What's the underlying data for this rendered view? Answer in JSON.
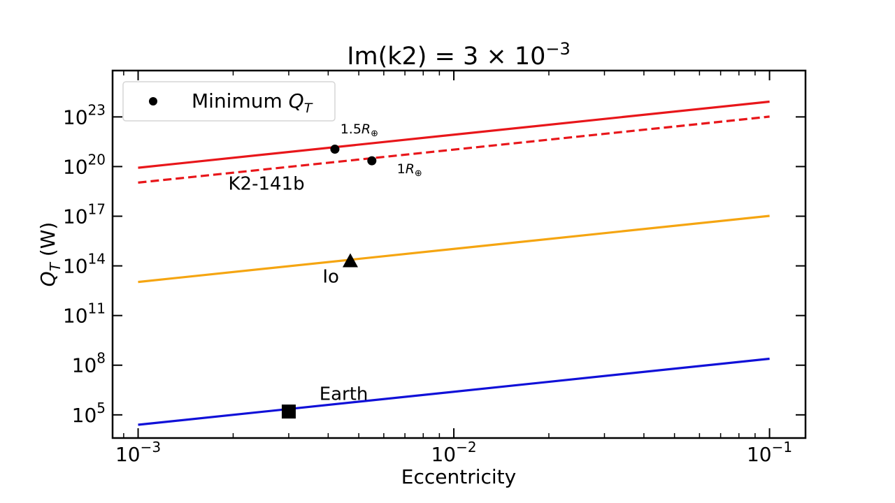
{
  "chart_data": {
    "type": "line",
    "title": "Im(k2) = 3 × 10",
    "title_exp": "−3",
    "xlabel": "Eccentricity",
    "ylabel_main": "Q",
    "ylabel_sub": "T",
    "ylabel_unit": " (W)",
    "xscale": "log",
    "yscale": "log",
    "xlim": [
      0.00083,
      0.13
    ],
    "ylim_log10": [
      3.6,
      25.8
    ],
    "x_ticks": [
      {
        "value": 0.001,
        "base": "10",
        "exp": "−3"
      },
      {
        "value": 0.01,
        "base": "10",
        "exp": "−2"
      },
      {
        "value": 0.1,
        "base": "10",
        "exp": "−1"
      }
    ],
    "y_ticks": [
      {
        "log10": 5,
        "base": "10",
        "exp": "5"
      },
      {
        "log10": 8,
        "base": "10",
        "exp": "8"
      },
      {
        "log10": 11,
        "base": "10",
        "exp": "11"
      },
      {
        "log10": 14,
        "base": "10",
        "exp": "14"
      },
      {
        "log10": 17,
        "base": "10",
        "exp": "17"
      },
      {
        "log10": 20,
        "base": "10",
        "exp": "20"
      },
      {
        "log10": 23,
        "base": "10",
        "exp": "23"
      }
    ],
    "grid": false,
    "legend_position": "upper-left",
    "legend": [
      {
        "label": "Minimum ",
        "label_math": "Q",
        "label_sub": "T",
        "marker": "circle",
        "color": "#000000"
      }
    ],
    "series": [
      {
        "id": "k2-141b-15",
        "x": [
          0.001,
          0.1
        ],
        "y_log10": [
          19.93,
          23.92
        ],
        "color": "#e8161a",
        "dash": "solid"
      },
      {
        "id": "k2-141b-1",
        "x": [
          0.001,
          0.1
        ],
        "y_log10": [
          19.03,
          23.02
        ],
        "color": "#e8161a",
        "dash": "dashed"
      },
      {
        "id": "io",
        "x": [
          0.001,
          0.1
        ],
        "y_log10": [
          13.03,
          17.02
        ],
        "color": "#f5a511",
        "dash": "solid"
      },
      {
        "id": "earth",
        "x": [
          0.001,
          0.1
        ],
        "y_log10": [
          4.4,
          8.39
        ],
        "color": "#1010d8",
        "dash": "solid"
      }
    ],
    "markers": [
      {
        "id": "k2-15-point",
        "x": 0.0042,
        "y_log10": 21.05,
        "shape": "circle",
        "color": "#000000"
      },
      {
        "id": "k2-1-point",
        "x": 0.0055,
        "y_log10": 20.35,
        "shape": "circle",
        "color": "#000000"
      },
      {
        "id": "io-point",
        "x": 0.0047,
        "y_log10": 14.3,
        "shape": "triangle",
        "color": "#000000"
      },
      {
        "id": "earth-point",
        "x": 0.003,
        "y_log10": 5.2,
        "shape": "square",
        "color": "#000000"
      }
    ],
    "annotations": [
      {
        "id": "k2-15-label",
        "text": "1.5",
        "math": "R",
        "sub": "⊕",
        "x": 0.00437,
        "y_log10": 22.0,
        "size": "small"
      },
      {
        "id": "k2-1-label",
        "text": "1",
        "math": "R",
        "sub": "⊕",
        "x": 0.0066,
        "y_log10": 19.6,
        "size": "small"
      },
      {
        "id": "k2-141b-label",
        "text": "K2-141b",
        "x": 0.00193,
        "y_log10": 18.6,
        "size": "normal"
      },
      {
        "id": "io-label",
        "text": "Io",
        "x": 0.00384,
        "y_log10": 13.0,
        "size": "normal"
      },
      {
        "id": "earth-label",
        "text": "Earth",
        "x": 0.00375,
        "y_log10": 5.9,
        "size": "normal"
      }
    ]
  }
}
